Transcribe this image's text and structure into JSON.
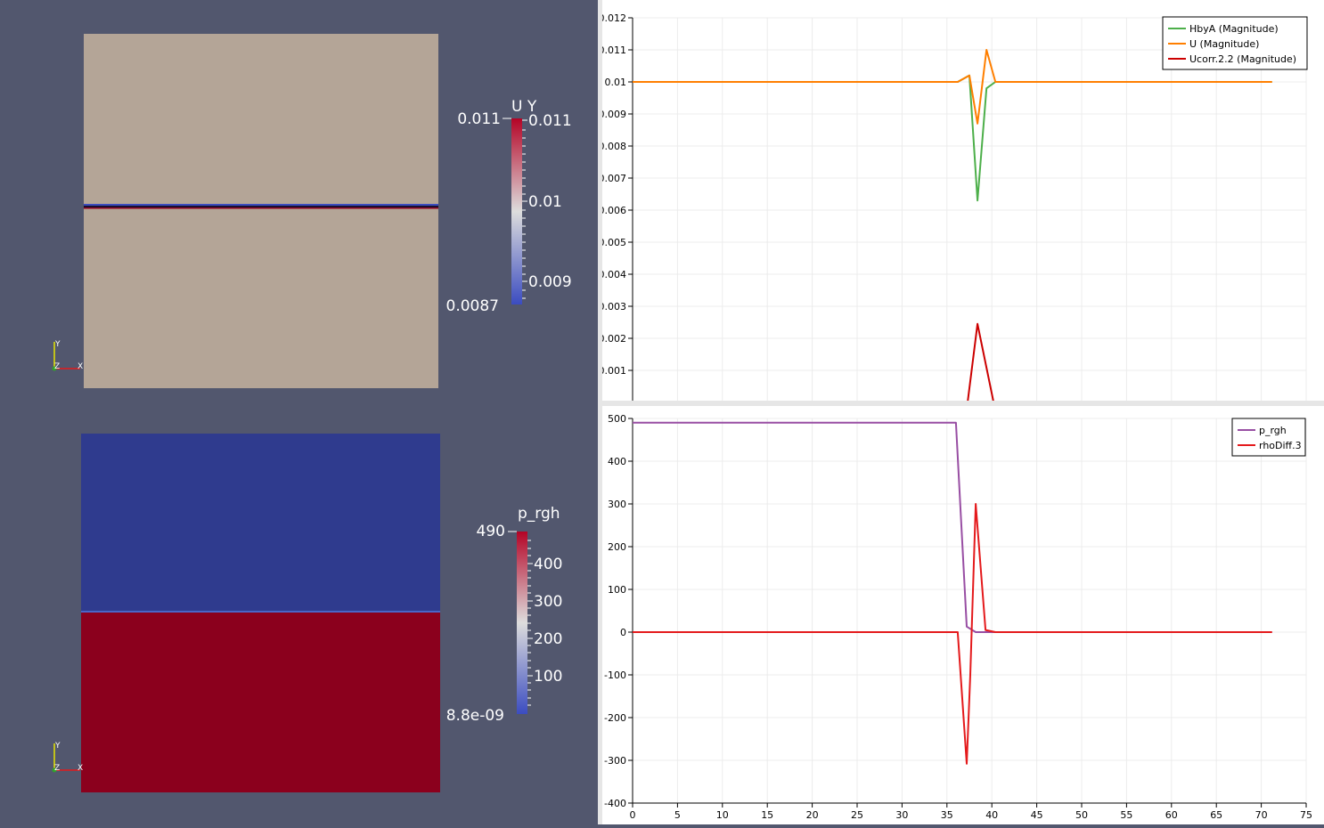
{
  "render_view_u": {
    "colorbar": {
      "title": "U Y",
      "range_max_label": "0.011",
      "range_min_label": "0.0087",
      "tick_labels": [
        "0.011",
        "0.01",
        "0.009"
      ]
    },
    "axes": {
      "y": "Y",
      "z": "Z",
      "x": "X"
    },
    "colors": {
      "background": "#52576e",
      "field": "#b4a597",
      "interface": "#3b4cc0"
    }
  },
  "render_view_p": {
    "colorbar": {
      "title": "p_rgh",
      "range_max_label": "490",
      "range_min_label": "8.8e-09",
      "tick_labels": [
        "400",
        "300",
        "200",
        "100"
      ]
    },
    "axes": {
      "y": "Y",
      "z": "Z",
      "x": "X"
    },
    "colors": {
      "upper_field": "#2f3b8e",
      "lower_field": "#8b001d"
    }
  },
  "chart_data": [
    {
      "type": "line",
      "x_ticks": [
        "0",
        "5",
        "10",
        "15",
        "20",
        "25",
        "30",
        "35",
        "40",
        "45",
        "50",
        "55",
        "60",
        "65",
        "70",
        "75"
      ],
      "y_ticks": [
        "0.001",
        "0.002",
        "0.003",
        "0.004",
        "0.005",
        "0.006",
        "0.007",
        "0.008",
        "0.009",
        "0.01",
        "0.011",
        "0.012"
      ],
      "xlim": [
        0,
        75
      ],
      "ylim": [
        0,
        0.012
      ],
      "grid": true,
      "legend_position": "top-right",
      "series": [
        {
          "name": "HbyA (Magnitude)",
          "color": "#4daf4a",
          "x": [
            0,
            36.2,
            37.5,
            38.4,
            39.4,
            40.4,
            41.2,
            71.2
          ],
          "y": [
            0.01,
            0.01,
            0.0102,
            0.0063,
            0.0098,
            0.01,
            0.01,
            0.01
          ]
        },
        {
          "name": "U (Magnitude)",
          "color": "#ff7f00",
          "x": [
            0,
            36.2,
            37.5,
            38.4,
            39.4,
            40.4,
            41.2,
            71.2
          ],
          "y": [
            0.01,
            0.01,
            0.0102,
            0.0087,
            0.011,
            0.01,
            0.01,
            0.01
          ]
        },
        {
          "name": "Ucorr.2.2 (Magnitude)",
          "color": "#cc0000",
          "x": [
            37.3,
            38.4,
            40.2
          ],
          "y": [
            0,
            0.00245,
            0
          ]
        }
      ]
    },
    {
      "type": "line",
      "x_ticks": [
        "0",
        "5",
        "10",
        "15",
        "20",
        "25",
        "30",
        "35",
        "40",
        "45",
        "50",
        "55",
        "60",
        "65",
        "70",
        "75"
      ],
      "y_ticks": [
        "-400",
        "-300",
        "-200",
        "-100",
        "0",
        "100",
        "200",
        "300",
        "400",
        "500"
      ],
      "xlim": [
        0,
        75
      ],
      "ylim": [
        -400,
        500
      ],
      "grid": true,
      "legend_position": "top-right",
      "series": [
        {
          "name": "p_rgh",
          "color": "#984ea3",
          "x": [
            0,
            36.0,
            37.2,
            38.2,
            39.3,
            40.4,
            71.2
          ],
          "y": [
            490,
            490,
            13,
            0,
            0,
            0,
            0
          ]
        },
        {
          "name": "rhoDiff.3",
          "color": "#e41a1c",
          "x": [
            0,
            36.2,
            37.2,
            37.6,
            38.2,
            39.3,
            40.4,
            71.2
          ],
          "y": [
            0,
            0,
            -308,
            -100,
            300,
            5,
            0,
            0
          ]
        }
      ]
    }
  ]
}
